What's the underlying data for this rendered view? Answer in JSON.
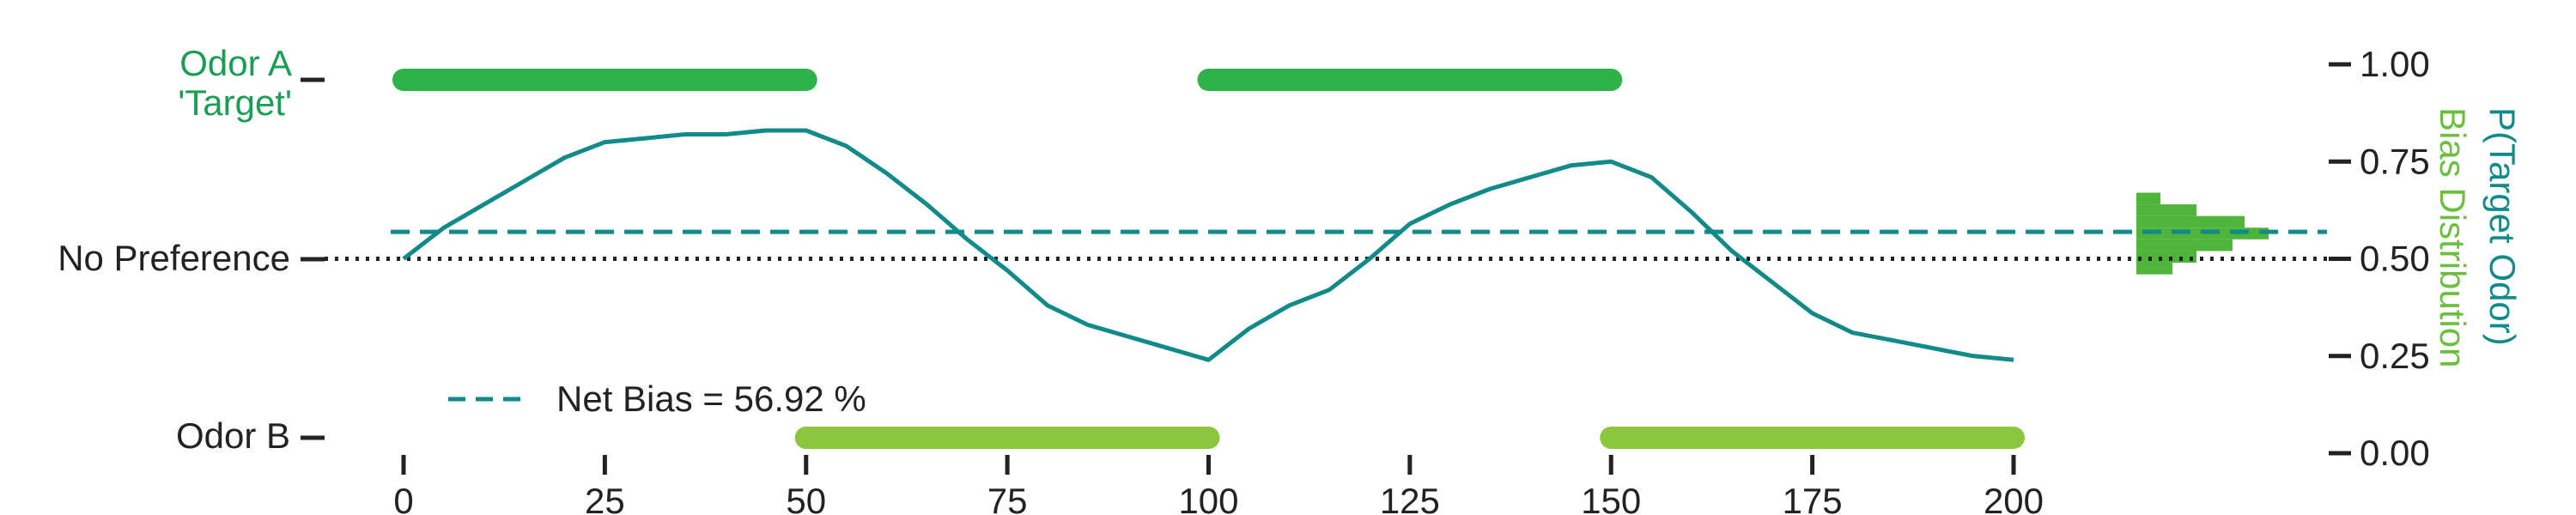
{
  "chart_data": {
    "type": "line",
    "x_ticks": [
      0,
      25,
      50,
      75,
      100,
      125,
      150,
      175,
      200
    ],
    "xlim": [
      0,
      200
    ],
    "ylim": [
      0,
      1
    ],
    "right_axis": {
      "ticks": [
        "0.00",
        "0.25",
        "0.50",
        "0.75",
        "1.00"
      ],
      "label_primary": "P(Target Odor)",
      "label_secondary": "Bias Distribution"
    },
    "left_labels": {
      "odor_a_line1": "Odor A",
      "odor_a_line2": "'Target'",
      "no_preference": "No Preference",
      "odor_b": "Odor B"
    },
    "legend": {
      "entry": "Net Bias = 56.92 %",
      "placement": "lower-left"
    },
    "net_bias": 0.5692,
    "no_preference_level": 0.5,
    "odor_a_periods": [
      [
        0,
        50
      ],
      [
        100,
        150
      ]
    ],
    "odor_b_periods": [
      [
        50,
        100
      ],
      [
        150,
        200
      ]
    ],
    "trace": {
      "x": [
        0,
        5,
        10,
        15,
        20,
        25,
        30,
        35,
        40,
        45,
        50,
        55,
        60,
        65,
        70,
        75,
        80,
        85,
        90,
        95,
        100,
        105,
        110,
        115,
        120,
        125,
        130,
        135,
        140,
        145,
        150,
        155,
        160,
        165,
        170,
        175,
        180,
        185,
        190,
        195,
        200
      ],
      "y": [
        0.5,
        0.58,
        0.64,
        0.7,
        0.76,
        0.8,
        0.81,
        0.82,
        0.82,
        0.83,
        0.83,
        0.79,
        0.72,
        0.64,
        0.55,
        0.47,
        0.38,
        0.33,
        0.3,
        0.27,
        0.24,
        0.32,
        0.38,
        0.42,
        0.5,
        0.59,
        0.64,
        0.68,
        0.71,
        0.74,
        0.75,
        0.71,
        0.62,
        0.52,
        0.44,
        0.36,
        0.31,
        0.29,
        0.27,
        0.25,
        0.24
      ]
    },
    "histogram": {
      "bin_edges": [
        0.46,
        0.49,
        0.52,
        0.55,
        0.58,
        0.61,
        0.64,
        0.67
      ],
      "counts": [
        6,
        10,
        16,
        22,
        18,
        10,
        4
      ]
    },
    "colors": {
      "odor_a": "#2db34a",
      "odor_b": "#8cc63f",
      "trace": "#118a8a",
      "net_bias": "#118a8a",
      "no_preference": "#222222",
      "label_a": "#1a9e55",
      "histogram": "#4fb53a",
      "axis_label_primary": "#118a8a",
      "axis_label_secondary": "#6bbf3f"
    }
  }
}
